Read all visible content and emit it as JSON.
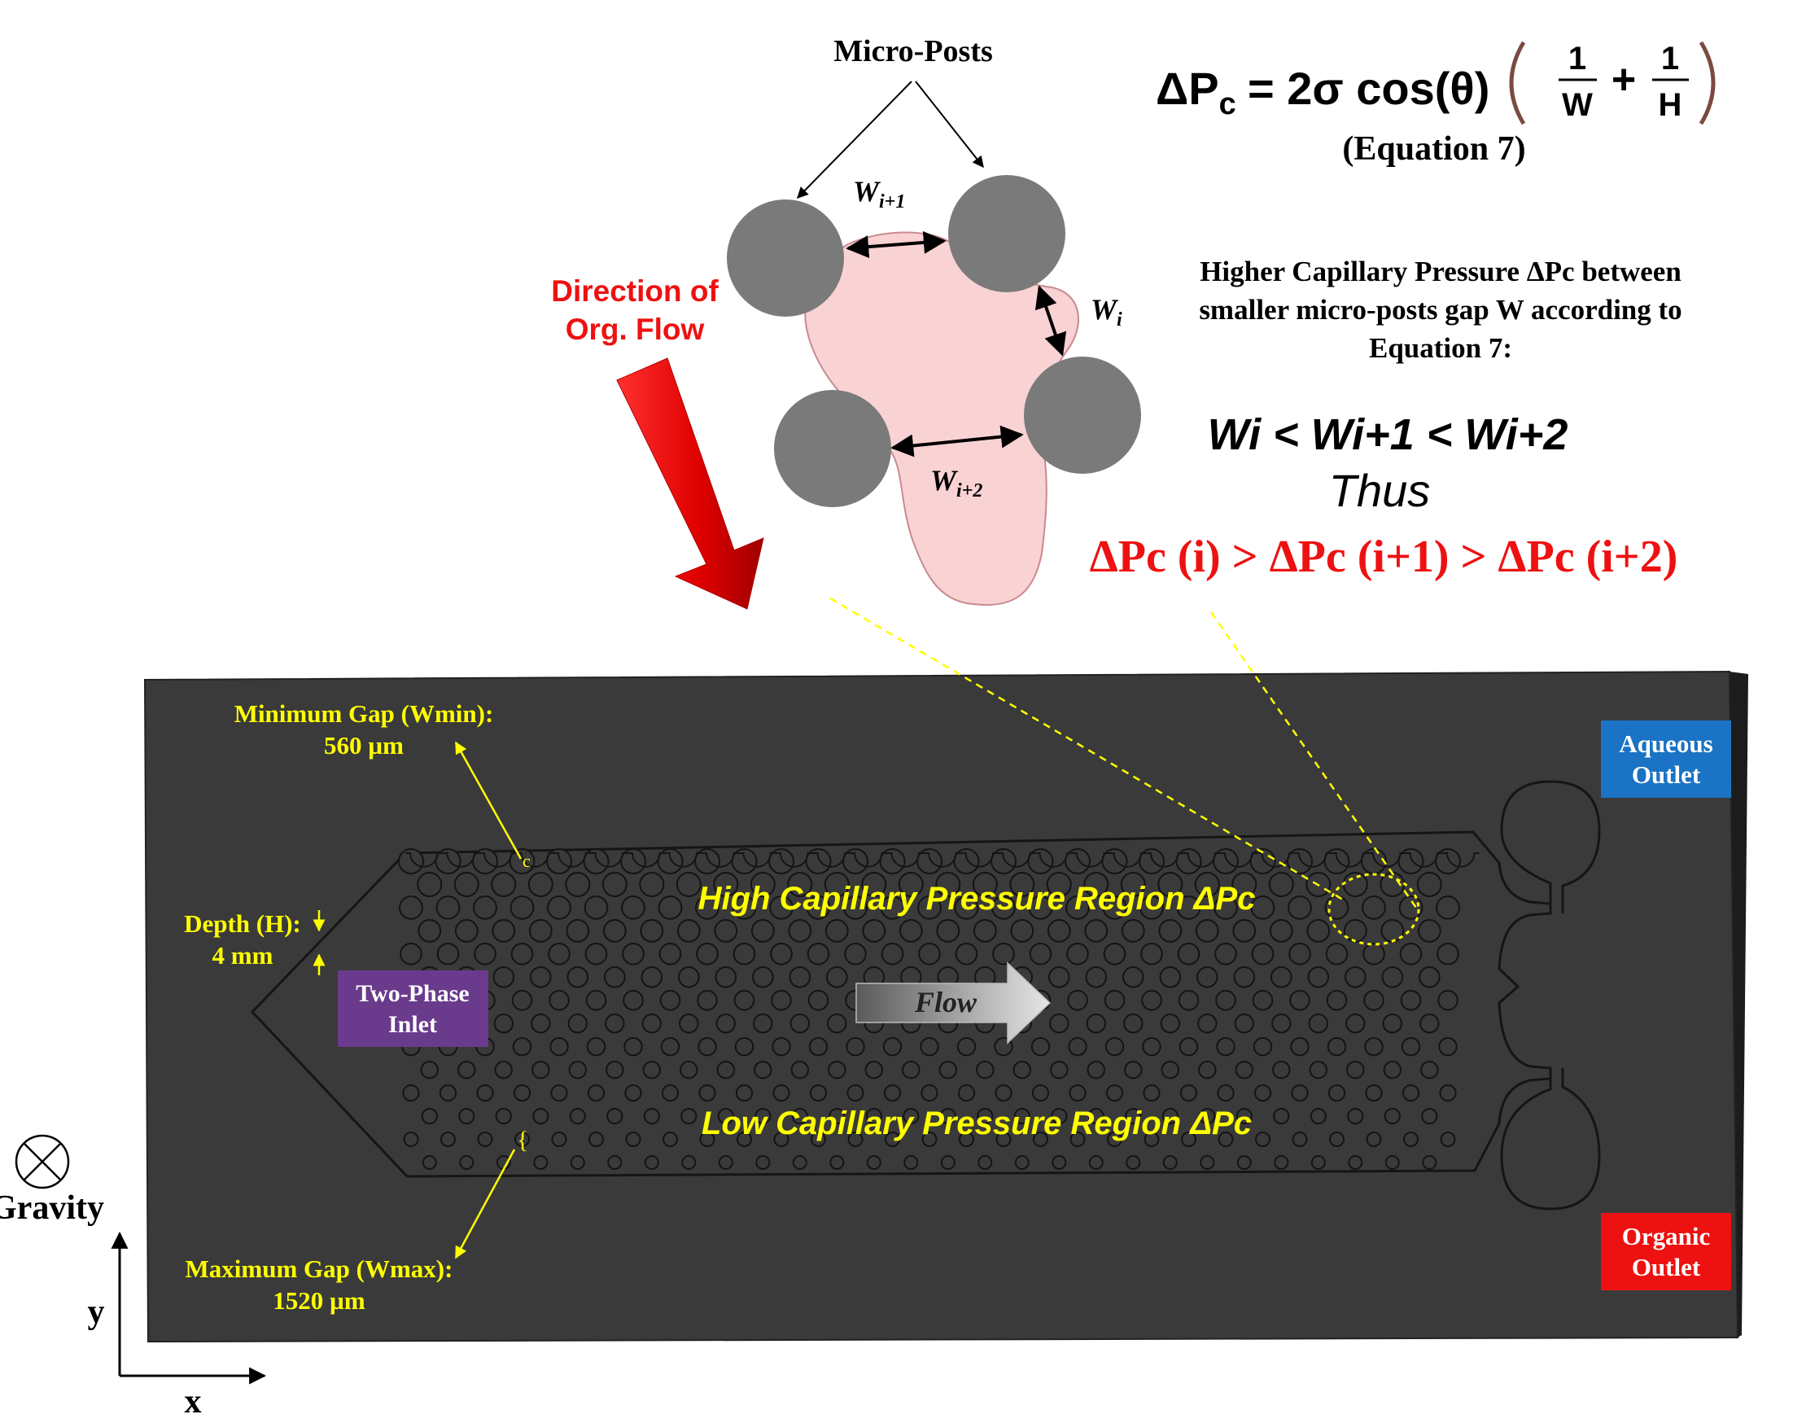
{
  "top": {
    "micro_posts_label": "Micro-Posts",
    "direction_line1": "Direction of",
    "direction_line2": "Org. Flow",
    "gap_w_i1": "W",
    "gap_w_i1_sub": "i+1",
    "gap_w_i": "W",
    "gap_w_i_sub": "i",
    "gap_w_i2": "W",
    "gap_w_i2_sub": "i+2"
  },
  "equation": {
    "lhs": "ΔP",
    "lhs_sub": "c",
    "rhs_main": "= 2σ  cos(θ)",
    "frac1_num": "1",
    "frac1_den": "W",
    "plus": "+",
    "frac2_num": "1",
    "frac2_den": "H",
    "label": "(Equation 7)"
  },
  "explanation": {
    "line1": "Higher Capillary Pressure ΔPc between",
    "line2": "smaller micro-posts gap W according to",
    "line3": "Equation 7:"
  },
  "inequality": {
    "w_relation": "Wi < Wi+1 < Wi+2",
    "thus": "Thus",
    "p_relation": "ΔPc (i) > ΔPc (i+1) > ΔPc (i+2)"
  },
  "device": {
    "min_gap_line1": "Minimum Gap (Wmin):",
    "min_gap_line2": "560 µm",
    "depth_line1": "Depth (H):",
    "depth_line2": "4 mm",
    "max_gap_line1": "Maximum Gap (Wmax):",
    "max_gap_line2": "1520 µm",
    "inlet_line1": "Two-Phase",
    "inlet_line2": "Inlet",
    "high_region": "High Capillary Pressure Region ΔPc",
    "low_region": "Low Capillary Pressure Region ΔPc",
    "flow_label": "Flow",
    "aqueous_line1": "Aqueous",
    "aqueous_line2": "Outlet",
    "organic_line1": "Organic",
    "organic_line2": "Outlet"
  },
  "axes": {
    "gravity": "Gravity",
    "y": "y",
    "x": "x"
  },
  "colors": {
    "device_body": "#3a3a3a",
    "post_fill": "#7a7a7a",
    "droplet": "#f9d2d4",
    "arrow_red": "#ee1111",
    "annotation_yellow": "#ffff00",
    "inlet_purple": "#6a3a8c",
    "aqueous_blue": "#1a73c4",
    "organic_red": "#ee1111"
  }
}
